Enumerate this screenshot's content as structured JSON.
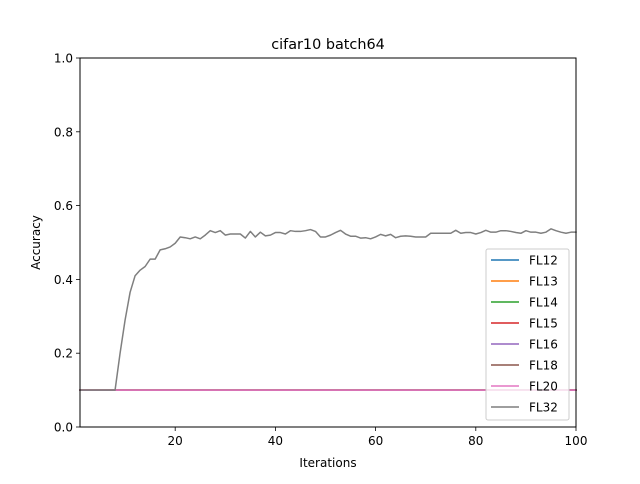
{
  "chart_data": {
    "type": "line",
    "title": "cifar10 batch64",
    "xlabel": "Iterations",
    "ylabel": "Accuracy",
    "xlim": [
      1,
      100
    ],
    "ylim": [
      0.0,
      1.0
    ],
    "x_ticks": [
      20,
      40,
      60,
      80,
      100
    ],
    "y_ticks": [
      0.0,
      0.2,
      0.4,
      0.6,
      0.8,
      1.0
    ],
    "x_tick_labels": [
      "20",
      "40",
      "60",
      "80",
      "100"
    ],
    "y_tick_labels": [
      "0.0",
      "0.2",
      "0.4",
      "0.6",
      "0.8",
      "1.0"
    ],
    "grid": false,
    "legend_position": "lower right",
    "series": [
      {
        "name": "FL12",
        "color": "#1f77b4",
        "constant": 0.1
      },
      {
        "name": "FL13",
        "color": "#ff7f0e",
        "constant": 0.1
      },
      {
        "name": "FL14",
        "color": "#2ca02c",
        "constant": 0.1
      },
      {
        "name": "FL15",
        "color": "#d62728",
        "constant": 0.1
      },
      {
        "name": "FL16",
        "color": "#9467bd",
        "constant": 0.1
      },
      {
        "name": "FL18",
        "color": "#8c564b",
        "constant": 0.1
      },
      {
        "name": "FL20",
        "color": "#e377c2",
        "constant": 0.1
      },
      {
        "name": "FL32",
        "color": "#7f7f7f",
        "values": [
          0.1,
          0.1,
          0.1,
          0.1,
          0.1,
          0.1,
          0.1,
          0.1,
          0.2,
          0.29,
          0.365,
          0.41,
          0.425,
          0.435,
          0.455,
          0.455,
          0.48,
          0.483,
          0.488,
          0.498,
          0.515,
          0.513,
          0.51,
          0.515,
          0.51,
          0.52,
          0.532,
          0.527,
          0.532,
          0.52,
          0.523,
          0.523,
          0.523,
          0.512,
          0.53,
          0.515,
          0.528,
          0.518,
          0.52,
          0.527,
          0.527,
          0.523,
          0.532,
          0.53,
          0.53,
          0.532,
          0.535,
          0.53,
          0.515,
          0.515,
          0.52,
          0.527,
          0.533,
          0.523,
          0.517,
          0.517,
          0.512,
          0.513,
          0.51,
          0.515,
          0.522,
          0.518,
          0.522,
          0.513,
          0.517,
          0.518,
          0.517,
          0.515,
          0.515,
          0.515,
          0.525,
          0.525,
          0.525,
          0.525,
          0.525,
          0.533,
          0.525,
          0.527,
          0.527,
          0.523,
          0.527,
          0.533,
          0.528,
          0.528,
          0.532,
          0.532,
          0.53,
          0.527,
          0.525,
          0.532,
          0.528,
          0.528,
          0.525,
          0.528,
          0.537,
          0.532,
          0.528,
          0.525,
          0.528,
          0.528
        ]
      }
    ]
  }
}
